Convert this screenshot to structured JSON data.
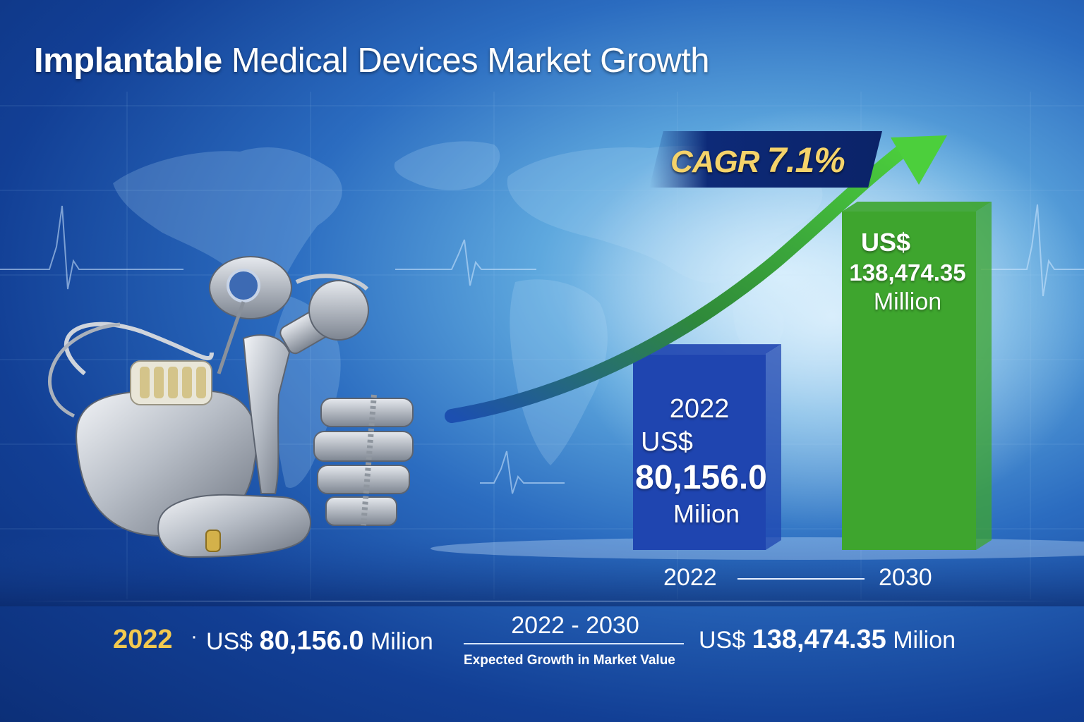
{
  "title": {
    "part1": "Implantable",
    "part2": "Medical Devices Market Growth"
  },
  "cagr": {
    "label": "CAGR",
    "value": "7.1%"
  },
  "chart_data": {
    "type": "bar",
    "categories": [
      "2022",
      "2030"
    ],
    "values": [
      80156.0,
      138474.35
    ],
    "colors": [
      "#1f45b0",
      "#3ea52e"
    ],
    "bar_labels": [
      {
        "year": "2022",
        "currency": "US$",
        "amount": "80,156.0",
        "unit": "Milion"
      },
      {
        "year": "",
        "currency": "US$",
        "amount": "138,474.35",
        "unit": "Million"
      }
    ],
    "trend_arrow_color": "#3db33a"
  },
  "summary": {
    "start_year": "2022",
    "start_prefix": "US$",
    "start_value": "80,156.0",
    "start_unit": "Milion",
    "range": "2022 - 2030",
    "caption": "Expected Growth in Market Value",
    "end_prefix": "US$",
    "end_value": "138,474.35",
    "end_unit": "Milion"
  },
  "illustration": {
    "name": "implantable-devices-illustration"
  }
}
